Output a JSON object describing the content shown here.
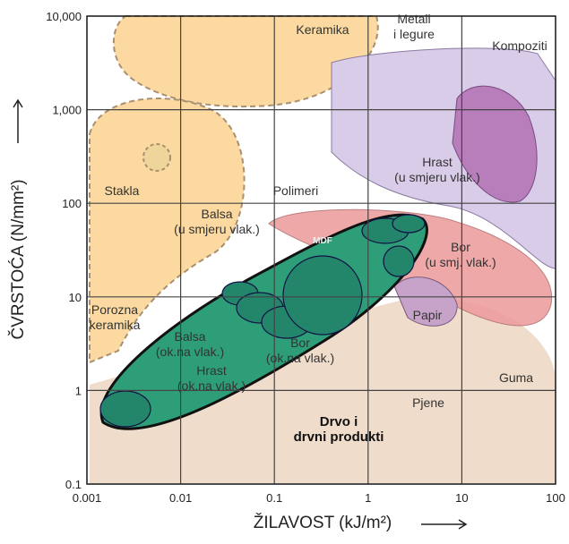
{
  "chart_data": {
    "type": "region",
    "x_label": "ŽILAVOST (kJ/m²)",
    "y_label": "ČVRSTOĆA (N/mm²)",
    "xscale": "log",
    "yscale": "log",
    "xlim": [
      0.001,
      100
    ],
    "ylim": [
      0.1,
      10000
    ],
    "xticks": [
      0.001,
      0.01,
      0.1,
      1,
      10,
      100
    ],
    "yticks": [
      0.1,
      1,
      10,
      100,
      {
        "value": 1000,
        "label": "1,000"
      },
      {
        "value": 10000,
        "label": "10,000"
      }
    ],
    "grid": true,
    "annotations": [
      {
        "lines": [
          "Keramika"
        ]
      },
      {
        "lines": [
          "Metali",
          "i legure"
        ]
      },
      {
        "lines": [
          "Kompoziti"
        ]
      },
      {
        "lines": [
          "Stakla"
        ]
      },
      {
        "lines": [
          "Polimeri"
        ]
      },
      {
        "lines": [
          "Hrast",
          "(u smjeru vlak.)"
        ]
      },
      {
        "lines": [
          "Balsa",
          "(u smjeru vlak.)"
        ]
      },
      {
        "lines": [
          "MDF"
        ]
      },
      {
        "lines": [
          "Bor",
          "(u smj. vlak.)"
        ]
      },
      {
        "lines": [
          "Porozna",
          "keramika"
        ]
      },
      {
        "lines": [
          "Balsa",
          "(ok.na vlak.)"
        ]
      },
      {
        "lines": [
          "Hrast",
          "(ok.na vlak.)"
        ]
      },
      {
        "lines": [
          "Bor",
          "(ok.na vlak.)"
        ]
      },
      {
        "lines": [
          "Papir"
        ]
      },
      {
        "lines": [
          "Guma"
        ]
      },
      {
        "lines": [
          "Pjene"
        ]
      },
      {
        "lines": [
          "Drvo i",
          "drvni produkti"
        ]
      }
    ]
  }
}
